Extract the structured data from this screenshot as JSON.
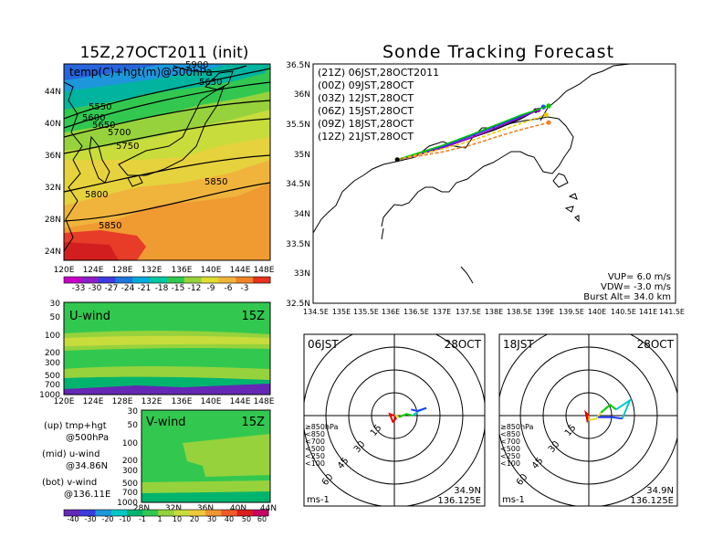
{
  "main": {
    "title": "Sonde Tracking Forecast"
  },
  "map_panel": {
    "title": "15Z,27OCT2011 (init)",
    "label": "temp(C)+hgt(m)@500hPa",
    "lat_labels": [
      "44N",
      "40N",
      "36N",
      "32N",
      "28N",
      "24N"
    ],
    "lon_labels": [
      "120E",
      "124E",
      "128E",
      "132E",
      "136E",
      "140E",
      "144E",
      "148E"
    ],
    "contour_labels": [
      "5550",
      "5600",
      "5650",
      "5650",
      "5700",
      "5750",
      "5800",
      "5850",
      "5850",
      "5900"
    ],
    "colorbar_labels": [
      "-33",
      "-30",
      "-27",
      "-24",
      "-21",
      "-18",
      "-15",
      "-12",
      "-9",
      "-6",
      "-3"
    ]
  },
  "uwind_panel": {
    "title": "U-wind",
    "time": "15Z",
    "y_labels": [
      "30",
      "50",
      "100",
      "200",
      "300",
      "500",
      "700",
      "1000"
    ],
    "x_labels": [
      "120E",
      "124E",
      "128E",
      "132E",
      "136E",
      "140E",
      "144E",
      "148E"
    ]
  },
  "vwind_panel": {
    "title": "V-wind",
    "time": "15Z",
    "y_labels": [
      "30",
      "50",
      "100",
      "200",
      "300",
      "500",
      "700",
      "1000"
    ],
    "x_labels": [
      "28N",
      "32N",
      "36N",
      "40N",
      "44N"
    ]
  },
  "legend_text": {
    "up": "(up) tmp+hgt",
    "up2": "@500hPa",
    "mid": "(mid) u-wind",
    "mid2": "@34.86N",
    "bot": "(bot) v-wind",
    "bot2": "@136.11E"
  },
  "wind_colorbar_labels": [
    "-40",
    "-30",
    "-20",
    "-10",
    "-1",
    "1",
    "10",
    "20",
    "30",
    "40",
    "50",
    "60"
  ],
  "track_panel": {
    "lat_labels": [
      "36.5N",
      "36N",
      "35.5N",
      "35N",
      "34.5N",
      "34N",
      "33.5N",
      "33N",
      "32.5N"
    ],
    "lon_labels": [
      "134.5E",
      "135E",
      "135.5E",
      "136E",
      "136.5E",
      "137E",
      "137.5E",
      "138E",
      "138.5E",
      "139E",
      "139.5E",
      "140E",
      "140.5E",
      "141E",
      "141.5E"
    ],
    "legend": [
      {
        "label": "(21Z)  06JST,28OCT2011",
        "color": "#000000"
      },
      {
        "label": "(00Z)  09JST,28OCT",
        "color": "#a000c8"
      },
      {
        "label": "(03Z)  12JST,28OCT",
        "color": "#1e3cff"
      },
      {
        "label": "(06Z)  15JST,28OCT",
        "color": "#00c800"
      },
      {
        "label": "(09Z)  18JST,28OCT",
        "color": "#f0c800"
      },
      {
        "label": "(12Z)  21JST,28OCT",
        "color": "#f08228"
      }
    ],
    "vup": "VUP=  6.0  m/s",
    "vdw": "VDW= -3.0  m/s",
    "burst": "Burst Alt= 34.0  km"
  },
  "hodo1": {
    "time": "06JST",
    "date": "28OCT",
    "lat": "34.9N",
    "lon": "136.125E",
    "unit": "ms-1"
  },
  "hodo2": {
    "time": "18JST",
    "date": "28OCT",
    "lat": "34.9N",
    "lon": "136.125E",
    "unit": "ms-1"
  },
  "hodo_rings": [
    "15",
    "30",
    "45",
    "60"
  ],
  "hodo_levels": [
    {
      "label": "≥850hPa",
      "color": "#e60000"
    },
    {
      "label": "<850",
      "color": "#f08228"
    },
    {
      "label": "<700",
      "color": "#e6dc32"
    },
    {
      "label": "<500",
      "color": "#00c800"
    },
    {
      "label": "<250",
      "color": "#00c8c8"
    },
    {
      "label": "<100",
      "color": "#1e3cff"
    }
  ],
  "chart_data": {
    "type": "line",
    "title": "Sonde Tracking Forecast",
    "xlim": [
      134.5,
      141.5
    ],
    "ylim": [
      32.5,
      36.5
    ],
    "launch": {
      "lon": 136.125,
      "lat": 34.9
    },
    "series": [
      {
        "name": "(21Z)  06JST,28OCT2011",
        "color": "#000000",
        "x": [
          136.125,
          136.6,
          137.0,
          137.5,
          138.0,
          138.5,
          138.8
        ],
        "y": [
          34.9,
          35.0,
          35.1,
          35.25,
          35.4,
          35.58,
          35.72
        ]
      },
      {
        "name": "(00Z)  09JST,28OCT",
        "color": "#a000c8",
        "x": [
          136.125,
          136.6,
          137.0,
          137.5,
          138.0,
          138.5,
          138.85
        ],
        "y": [
          34.9,
          35.0,
          35.1,
          35.25,
          35.42,
          35.6,
          35.73
        ]
      },
      {
        "name": "(03Z)  12JST,28OCT",
        "color": "#1e3cff",
        "x": [
          136.125,
          136.6,
          137.0,
          137.5,
          138.0,
          138.5,
          138.95
        ],
        "y": [
          34.9,
          35.02,
          35.12,
          35.28,
          35.45,
          35.62,
          35.78
        ]
      },
      {
        "name": "(06Z)  15JST,28OCT",
        "color": "#00c800",
        "x": [
          136.125,
          136.6,
          137.0,
          137.5,
          138.0,
          138.5,
          139.05
        ],
        "y": [
          34.9,
          35.03,
          35.14,
          35.3,
          35.47,
          35.64,
          35.8
        ]
      },
      {
        "name": "(09Z)  18JST,28OCT",
        "color": "#f0c800",
        "x": [
          136.125,
          136.6,
          137.0,
          137.5,
          138.0,
          138.5,
          139.0
        ],
        "y": [
          34.9,
          35.0,
          35.08,
          35.2,
          35.35,
          35.5,
          35.65
        ]
      },
      {
        "name": "(12Z)  21JST,28OCT",
        "color": "#f08228",
        "x": [
          136.125,
          136.6,
          137.0,
          137.5,
          138.0,
          138.5,
          139.05
        ],
        "y": [
          34.9,
          34.97,
          35.03,
          35.13,
          35.27,
          35.4,
          35.52
        ]
      }
    ],
    "hodograph_06JST": {
      "segments": [
        {
          "color": "#e60000",
          "u": [
            0,
            -3,
            -1,
            1,
            0
          ],
          "v": [
            0,
            1,
            -4,
            -2,
            0
          ]
        },
        {
          "color": "#f08228",
          "u": [
            0,
            1
          ],
          "v": [
            0,
            0
          ]
        },
        {
          "color": "#e6dc32",
          "u": [
            1,
            3
          ],
          "v": [
            0,
            -1
          ]
        },
        {
          "color": "#00c800",
          "u": [
            3,
            8,
            12
          ],
          "v": [
            -1,
            1,
            0
          ]
        },
        {
          "color": "#00c8c8",
          "u": [
            12,
            16,
            21
          ],
          "v": [
            0,
            3,
            5
          ]
        },
        {
          "color": "#1e3cff",
          "u": [
            21,
            15,
            11
          ],
          "v": [
            5,
            3,
            4
          ]
        }
      ]
    },
    "hodograph_18JST": {
      "segments": [
        {
          "color": "#e60000",
          "u": [
            0,
            -2,
            -1,
            0
          ],
          "v": [
            0,
            2,
            -3,
            0
          ]
        },
        {
          "color": "#f08228",
          "u": [
            0,
            0
          ],
          "v": [
            0,
            -3
          ]
        },
        {
          "color": "#e6dc32",
          "u": [
            0,
            5,
            8
          ],
          "v": [
            -3,
            -2,
            2
          ]
        },
        {
          "color": "#00c800",
          "u": [
            8,
            14,
            18
          ],
          "v": [
            2,
            7,
            4
          ]
        },
        {
          "color": "#00c8c8",
          "u": [
            18,
            27,
            22
          ],
          "v": [
            4,
            10,
            -2
          ]
        },
        {
          "color": "#1e3cff",
          "u": [
            22,
            15,
            6
          ],
          "v": [
            -2,
            -1,
            -1
          ]
        }
      ]
    }
  }
}
